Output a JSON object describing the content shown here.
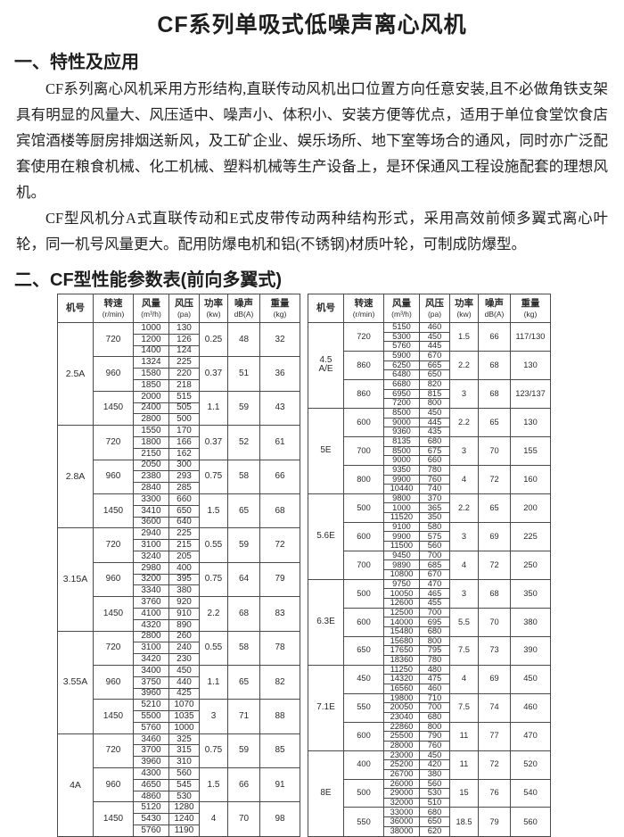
{
  "doc": {
    "title": "CF系列单吸式低噪声离心风机",
    "section1": {
      "heading": "一、特性及应用",
      "p1": "CF系列离心风机采用方形结构,直联传动风机出口位置方向任意安装,且不必做角铁支架具有明显的风量大、风压适中、噪声小、体积小、安装方便等优点，适用于单位食堂饮食店宾馆酒楼等厨房排烟送新风，及工矿企业、娱乐场所、地下室等场合的通风，同时亦广泛配套使用在粮食机械、化工机械、塑料机械等生产设备上，是环保通风工程设施配套的理想风机。",
      "p2": "CF型风机分A式直联传动和E式皮带传动两种结构形式，采用高效前倾多翼式离心叶轮，同一机号风量更大。配用防爆电机和铝(不锈钢)材质叶轮，可制成防爆型。"
    },
    "section2": {
      "heading": "二、CF型性能参数表(前向多翼式)"
    }
  },
  "columns": [
    {
      "key": "model",
      "label": "机号",
      "unit": ""
    },
    {
      "key": "speed",
      "label": "转速",
      "unit": "(r/min)"
    },
    {
      "key": "flow",
      "label": "风量",
      "unit": "(m³/h)"
    },
    {
      "key": "pressure",
      "label": "风压",
      "unit": "(pa)"
    },
    {
      "key": "power",
      "label": "功率",
      "unit": "(kw)"
    },
    {
      "key": "noise",
      "label": "噪声",
      "unit": "dB(A)"
    },
    {
      "key": "weight",
      "label": "重量",
      "unit": "(kg)"
    }
  ],
  "tables": [
    {
      "id": "table-left",
      "models": [
        {
          "model": "2.5A",
          "groups": [
            {
              "speed": "720",
              "rows": [
                [
                  "1000",
                  "130"
                ],
                [
                  "1200",
                  "126"
                ],
                [
                  "1400",
                  "124"
                ]
              ],
              "power": "0.25",
              "noise": "48",
              "weight": "32"
            },
            {
              "speed": "960",
              "rows": [
                [
                  "1324",
                  "225"
                ],
                [
                  "1580",
                  "220"
                ],
                [
                  "1850",
                  "218"
                ]
              ],
              "power": "0.37",
              "noise": "51",
              "weight": "36"
            },
            {
              "speed": "1450",
              "rows": [
                [
                  "2000",
                  "515"
                ],
                [
                  "2400",
                  "505"
                ],
                [
                  "2800",
                  "500"
                ]
              ],
              "power": "1.1",
              "noise": "59",
              "weight": "43"
            }
          ]
        },
        {
          "model": "2.8A",
          "groups": [
            {
              "speed": "720",
              "rows": [
                [
                  "1550",
                  "170"
                ],
                [
                  "1800",
                  "166"
                ],
                [
                  "2150",
                  "162"
                ]
              ],
              "power": "0.37",
              "noise": "52",
              "weight": "61"
            },
            {
              "speed": "960",
              "rows": [
                [
                  "2050",
                  "300"
                ],
                [
                  "2380",
                  "293"
                ],
                [
                  "2840",
                  "285"
                ]
              ],
              "power": "0.75",
              "noise": "58",
              "weight": "66"
            },
            {
              "speed": "1450",
              "rows": [
                [
                  "3300",
                  "660"
                ],
                [
                  "3410",
                  "650"
                ],
                [
                  "3600",
                  "640"
                ]
              ],
              "power": "1.5",
              "noise": "65",
              "weight": "68"
            }
          ]
        },
        {
          "model": "3.15A",
          "groups": [
            {
              "speed": "720",
              "rows": [
                [
                  "2940",
                  "225"
                ],
                [
                  "3100",
                  "215"
                ],
                [
                  "3240",
                  "205"
                ]
              ],
              "power": "0.55",
              "noise": "59",
              "weight": "72"
            },
            {
              "speed": "960",
              "rows": [
                [
                  "2980",
                  "400"
                ],
                [
                  "3200",
                  "395"
                ],
                [
                  "3340",
                  "380"
                ]
              ],
              "power": "0.75",
              "noise": "64",
              "weight": "79"
            },
            {
              "speed": "1450",
              "rows": [
                [
                  "3760",
                  "920"
                ],
                [
                  "4100",
                  "910"
                ],
                [
                  "4320",
                  "890"
                ]
              ],
              "power": "2.2",
              "noise": "68",
              "weight": "83"
            }
          ]
        },
        {
          "model": "3.55A",
          "groups": [
            {
              "speed": "720",
              "rows": [
                [
                  "2800",
                  "260"
                ],
                [
                  "3100",
                  "240"
                ],
                [
                  "3420",
                  "230"
                ]
              ],
              "power": "0.55",
              "noise": "58",
              "weight": "78"
            },
            {
              "speed": "960",
              "rows": [
                [
                  "3400",
                  "450"
                ],
                [
                  "3750",
                  "440"
                ],
                [
                  "3960",
                  "425"
                ]
              ],
              "power": "1.1",
              "noise": "65",
              "weight": "82"
            },
            {
              "speed": "1450",
              "rows": [
                [
                  "5210",
                  "1070"
                ],
                [
                  "5500",
                  "1035"
                ],
                [
                  "5760",
                  "1000"
                ]
              ],
              "power": "3",
              "noise": "71",
              "weight": "88"
            }
          ]
        },
        {
          "model": "4A",
          "groups": [
            {
              "speed": "720",
              "rows": [
                [
                  "3460",
                  "325"
                ],
                [
                  "3700",
                  "315"
                ],
                [
                  "3960",
                  "310"
                ]
              ],
              "power": "0.75",
              "noise": "59",
              "weight": "85"
            },
            {
              "speed": "960",
              "rows": [
                [
                  "4300",
                  "560"
                ],
                [
                  "4650",
                  "545"
                ],
                [
                  "4860",
                  "530"
                ]
              ],
              "power": "1.5",
              "noise": "66",
              "weight": "91"
            },
            {
              "speed": "1450",
              "rows": [
                [
                  "5120",
                  "1280"
                ],
                [
                  "5430",
                  "1240"
                ],
                [
                  "5760",
                  "1190"
                ]
              ],
              "power": "4",
              "noise": "70",
              "weight": "98"
            }
          ]
        }
      ]
    },
    {
      "id": "table-right",
      "models": [
        {
          "model": "4.5\nA/E",
          "groups": [
            {
              "speed": "720",
              "rows": [
                [
                  "5150",
                  "460"
                ],
                [
                  "5300",
                  "450"
                ],
                [
                  "5760",
                  "445"
                ]
              ],
              "power": "1.5",
              "noise": "66",
              "weight": "117/130"
            },
            {
              "speed": "860",
              "rows": [
                [
                  "5900",
                  "670"
                ],
                [
                  "6250",
                  "665"
                ],
                [
                  "6480",
                  "650"
                ]
              ],
              "power": "2.2",
              "noise": "68",
              "weight": "130"
            },
            {
              "speed": "860",
              "rows": [
                [
                  "6680",
                  "820"
                ],
                [
                  "6950",
                  "815"
                ],
                [
                  "7200",
                  "800"
                ]
              ],
              "power": "3",
              "noise": "68",
              "weight": "123/137"
            }
          ]
        },
        {
          "model": "5E",
          "groups": [
            {
              "speed": "600",
              "rows": [
                [
                  "8500",
                  "450"
                ],
                [
                  "9000",
                  "445"
                ],
                [
                  "9360",
                  "435"
                ]
              ],
              "power": "2.2",
              "noise": "65",
              "weight": "130"
            },
            {
              "speed": "700",
              "rows": [
                [
                  "8135",
                  "680"
                ],
                [
                  "8500",
                  "675"
                ],
                [
                  "9000",
                  "660"
                ]
              ],
              "power": "3",
              "noise": "70",
              "weight": "155"
            },
            {
              "speed": "800",
              "rows": [
                [
                  "9350",
                  "780"
                ],
                [
                  "9900",
                  "760"
                ],
                [
                  "10440",
                  "740"
                ]
              ],
              "power": "4",
              "noise": "72",
              "weight": "160"
            }
          ]
        },
        {
          "model": "5.6E",
          "groups": [
            {
              "speed": "500",
              "rows": [
                [
                  "9800",
                  "370"
                ],
                [
                  "1000",
                  "365"
                ],
                [
                  "11520",
                  "350"
                ]
              ],
              "power": "2.2",
              "noise": "65",
              "weight": "200"
            },
            {
              "speed": "600",
              "rows": [
                [
                  "9100",
                  "580"
                ],
                [
                  "9900",
                  "575"
                ],
                [
                  "11500",
                  "560"
                ]
              ],
              "power": "3",
              "noise": "69",
              "weight": "225"
            },
            {
              "speed": "700",
              "rows": [
                [
                  "9450",
                  "700"
                ],
                [
                  "9890",
                  "685"
                ],
                [
                  "10800",
                  "670"
                ]
              ],
              "power": "4",
              "noise": "72",
              "weight": "250"
            }
          ]
        },
        {
          "model": "6.3E",
          "groups": [
            {
              "speed": "500",
              "rows": [
                [
                  "9750",
                  "470"
                ],
                [
                  "10050",
                  "465"
                ],
                [
                  "12600",
                  "455"
                ]
              ],
              "power": "3",
              "noise": "68",
              "weight": "350"
            },
            {
              "speed": "600",
              "rows": [
                [
                  "12500",
                  "700"
                ],
                [
                  "14000",
                  "695"
                ],
                [
                  "15480",
                  "680"
                ]
              ],
              "power": "5.5",
              "noise": "70",
              "weight": "380"
            },
            {
              "speed": "650",
              "rows": [
                [
                  "15680",
                  "800"
                ],
                [
                  "17650",
                  "795"
                ],
                [
                  "18360",
                  "780"
                ]
              ],
              "power": "7.5",
              "noise": "73",
              "weight": "390"
            }
          ]
        },
        {
          "model": "7.1E",
          "groups": [
            {
              "speed": "450",
              "rows": [
                [
                  "11250",
                  "480"
                ],
                [
                  "14320",
                  "475"
                ],
                [
                  "16560",
                  "460"
                ]
              ],
              "power": "4",
              "noise": "69",
              "weight": "450"
            },
            {
              "speed": "550",
              "rows": [
                [
                  "19800",
                  "710"
                ],
                [
                  "20050",
                  "700"
                ],
                [
                  "23040",
                  "680"
                ]
              ],
              "power": "7.5",
              "noise": "74",
              "weight": "460"
            },
            {
              "speed": "600",
              "rows": [
                [
                  "22860",
                  "800"
                ],
                [
                  "25500",
                  "790"
                ],
                [
                  "28000",
                  "760"
                ]
              ],
              "power": "11",
              "noise": "77",
              "weight": "470"
            }
          ]
        },
        {
          "model": "8E",
          "groups": [
            {
              "speed": "400",
              "rows": [
                [
                  "23000",
                  "450"
                ],
                [
                  "25200",
                  "420"
                ],
                [
                  "26700",
                  "380"
                ]
              ],
              "power": "11",
              "noise": "72",
              "weight": "520"
            },
            {
              "speed": "500",
              "rows": [
                [
                  "26000",
                  "560"
                ],
                [
                  "29000",
                  "530"
                ],
                [
                  "32000",
                  "510"
                ]
              ],
              "power": "15",
              "noise": "76",
              "weight": "540"
            },
            {
              "speed": "550",
              "rows": [
                [
                  "33000",
                  "680"
                ],
                [
                  "36000",
                  "650"
                ],
                [
                  "38000",
                  "620"
                ]
              ],
              "power": "18.5",
              "noise": "79",
              "weight": "560"
            }
          ]
        }
      ]
    }
  ]
}
